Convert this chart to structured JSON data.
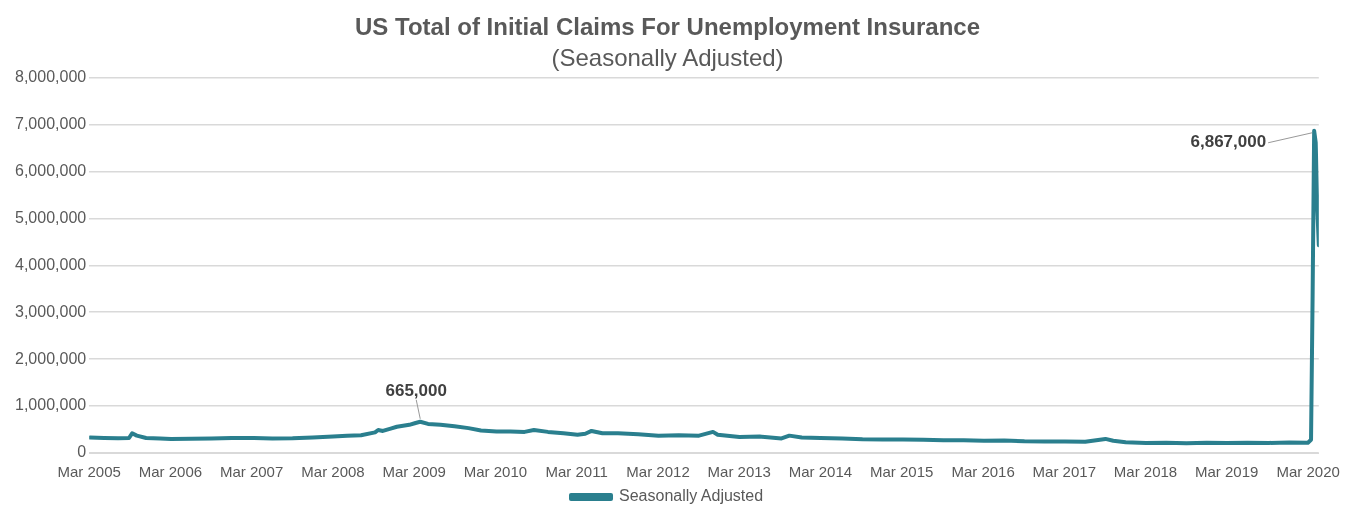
{
  "chart_data": {
    "type": "line",
    "title": "US Total of Initial Claims For Unemployment Insurance",
    "subtitle": "(Seasonally Adjusted)",
    "x": [
      "2005-03-05",
      "2005-05-07",
      "2005-07-09",
      "2005-08-27",
      "2005-09-10",
      "2005-10-01",
      "2005-11-12",
      "2006-01-14",
      "2006-03-04",
      "2006-06-03",
      "2006-09-02",
      "2006-12-02",
      "2007-03-03",
      "2007-06-02",
      "2007-09-01",
      "2007-12-01",
      "2008-03-01",
      "2008-05-03",
      "2008-07-05",
      "2008-09-06",
      "2008-09-20",
      "2008-10-11",
      "2008-11-15",
      "2008-12-13",
      "2009-01-10",
      "2009-02-07",
      "2009-03-07",
      "2009-03-28",
      "2009-05-02",
      "2009-06-27",
      "2009-08-29",
      "2009-10-31",
      "2009-12-26",
      "2010-03-06",
      "2010-05-08",
      "2010-07-10",
      "2010-08-21",
      "2010-10-23",
      "2011-01-01",
      "2011-03-05",
      "2011-04-09",
      "2011-05-07",
      "2011-06-25",
      "2011-09-03",
      "2011-12-03",
      "2012-03-03",
      "2012-06-02",
      "2012-09-01",
      "2012-11-03",
      "2012-11-24",
      "2013-03-02",
      "2013-06-01",
      "2013-09-07",
      "2013-10-12",
      "2013-12-07",
      "2014-03-01",
      "2014-06-07",
      "2014-09-06",
      "2014-12-06",
      "2015-03-07",
      "2015-06-06",
      "2015-09-05",
      "2015-12-05",
      "2016-03-05",
      "2016-06-04",
      "2016-09-03",
      "2016-12-03",
      "2017-03-04",
      "2017-06-03",
      "2017-09-02",
      "2017-10-07",
      "2017-12-02",
      "2018-03-03",
      "2018-06-02",
      "2018-09-01",
      "2018-12-01",
      "2019-03-02",
      "2019-06-01",
      "2019-09-07",
      "2019-12-07",
      "2020-02-29",
      "2020-03-14",
      "2020-03-21",
      "2020-03-28",
      "2020-04-04",
      "2020-04-11",
      "2020-04-18"
    ],
    "series": [
      {
        "name": "Seasonally Adjusted",
        "color": "#2a7f8e",
        "values": [
          330000,
          320000,
          315000,
          320000,
          420000,
          370000,
          320000,
          310000,
          300000,
          305000,
          310000,
          320000,
          320000,
          310000,
          315000,
          330000,
          350000,
          370000,
          380000,
          440000,
          490000,
          470000,
          520000,
          560000,
          580000,
          600000,
          640000,
          665000,
          620000,
          600000,
          570000,
          530000,
          480000,
          460000,
          460000,
          450000,
          490000,
          450000,
          420000,
          390000,
          410000,
          470000,
          420000,
          420000,
          400000,
          370000,
          380000,
          370000,
          450000,
          390000,
          340000,
          350000,
          310000,
          370000,
          330000,
          320000,
          310000,
          295000,
          290000,
          290000,
          280000,
          270000,
          270000,
          260000,
          265000,
          250000,
          245000,
          245000,
          240000,
          300000,
          260000,
          230000,
          215000,
          220000,
          210000,
          220000,
          215000,
          220000,
          215000,
          225000,
          220000,
          282000,
          3307000,
          6867000,
          6615000,
          5237000,
          4427000
        ]
      }
    ],
    "xlim": [
      "2005-03-01",
      "2020-04-18"
    ],
    "xticks": [
      {
        "value": "2005-03-01",
        "label": "Mar 2005"
      },
      {
        "value": "2006-03-01",
        "label": "Mar 2006"
      },
      {
        "value": "2007-03-01",
        "label": "Mar 2007"
      },
      {
        "value": "2008-03-01",
        "label": "Mar 2008"
      },
      {
        "value": "2009-03-01",
        "label": "Mar 2009"
      },
      {
        "value": "2010-03-01",
        "label": "Mar 2010"
      },
      {
        "value": "2011-03-01",
        "label": "Mar 2011"
      },
      {
        "value": "2012-03-01",
        "label": "Mar 2012"
      },
      {
        "value": "2013-03-01",
        "label": "Mar 2013"
      },
      {
        "value": "2014-03-01",
        "label": "Mar 2014"
      },
      {
        "value": "2015-03-01",
        "label": "Mar 2015"
      },
      {
        "value": "2016-03-01",
        "label": "Mar 2016"
      },
      {
        "value": "2017-03-01",
        "label": "Mar 2017"
      },
      {
        "value": "2018-03-01",
        "label": "Mar 2018"
      },
      {
        "value": "2019-03-01",
        "label": "Mar 2019"
      },
      {
        "value": "2020-03-01",
        "label": "Mar 2020"
      }
    ],
    "ylim": [
      0,
      8000000
    ],
    "yticks": [
      {
        "value": 0,
        "label": "0"
      },
      {
        "value": 1000000,
        "label": "1,000,000"
      },
      {
        "value": 2000000,
        "label": "2,000,000"
      },
      {
        "value": 3000000,
        "label": "3,000,000"
      },
      {
        "value": 4000000,
        "label": "4,000,000"
      },
      {
        "value": 5000000,
        "label": "5,000,000"
      },
      {
        "value": 6000000,
        "label": "6,000,000"
      },
      {
        "value": 7000000,
        "label": "7,000,000"
      },
      {
        "value": 8000000,
        "label": "8,000,000"
      }
    ],
    "annotations": [
      {
        "text": "665,000",
        "x": "2009-03-28",
        "y": 665000
      },
      {
        "text": "6,867,000",
        "x": "2020-03-28",
        "y": 6867000
      }
    ],
    "grid": "y",
    "legend": "bottom",
    "marker": "none",
    "line_style": "solid"
  }
}
